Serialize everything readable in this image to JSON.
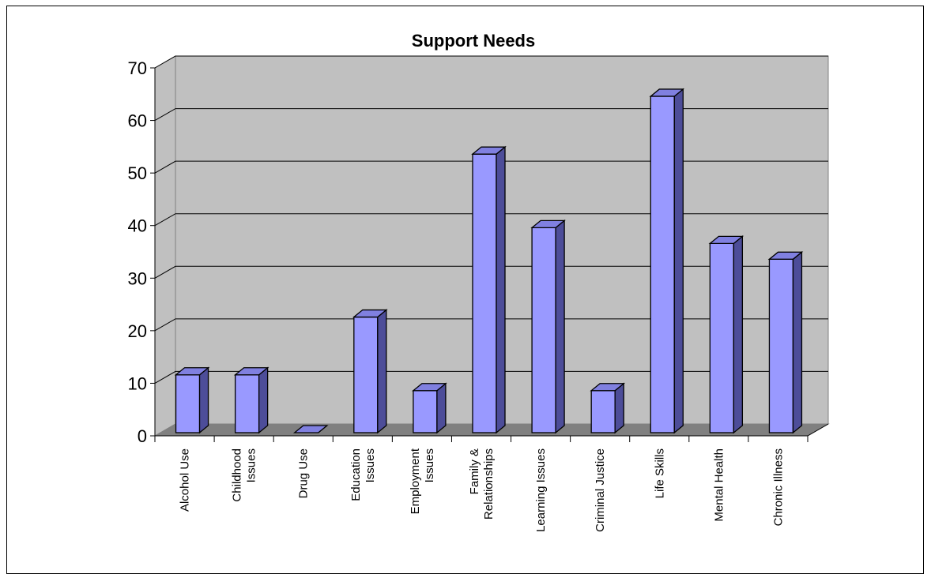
{
  "chart_data": {
    "type": "bar",
    "title": "Support Needs",
    "xlabel": "",
    "ylabel": "",
    "ylim": [
      0,
      70
    ],
    "yticks": [
      0,
      10,
      20,
      30,
      40,
      50,
      60,
      70
    ],
    "grid": true,
    "legend": "none",
    "categories": [
      [
        "Alcohol Use"
      ],
      [
        "Childhood",
        "Issues"
      ],
      [
        "Drug Use"
      ],
      [
        "Education",
        "Issues"
      ],
      [
        "Employment",
        "Issues"
      ],
      [
        "Family &",
        "Relationships"
      ],
      [
        "Learning Issues"
      ],
      [
        "Criminal Justice"
      ],
      [
        "Life Skills"
      ],
      [
        "Mental Health"
      ],
      [
        "Chronic Illness"
      ]
    ],
    "values": [
      11,
      11,
      0,
      22,
      8,
      53,
      39,
      8,
      64,
      36,
      33
    ],
    "colors": {
      "bar_front": "#9999ff",
      "bar_side": "#4d4d99",
      "bar_top": "#8080e0",
      "back_wall": "#c0c0c0",
      "side_wall": "#c0c0c0",
      "floor": "#808080",
      "gridline": "#000000"
    }
  }
}
